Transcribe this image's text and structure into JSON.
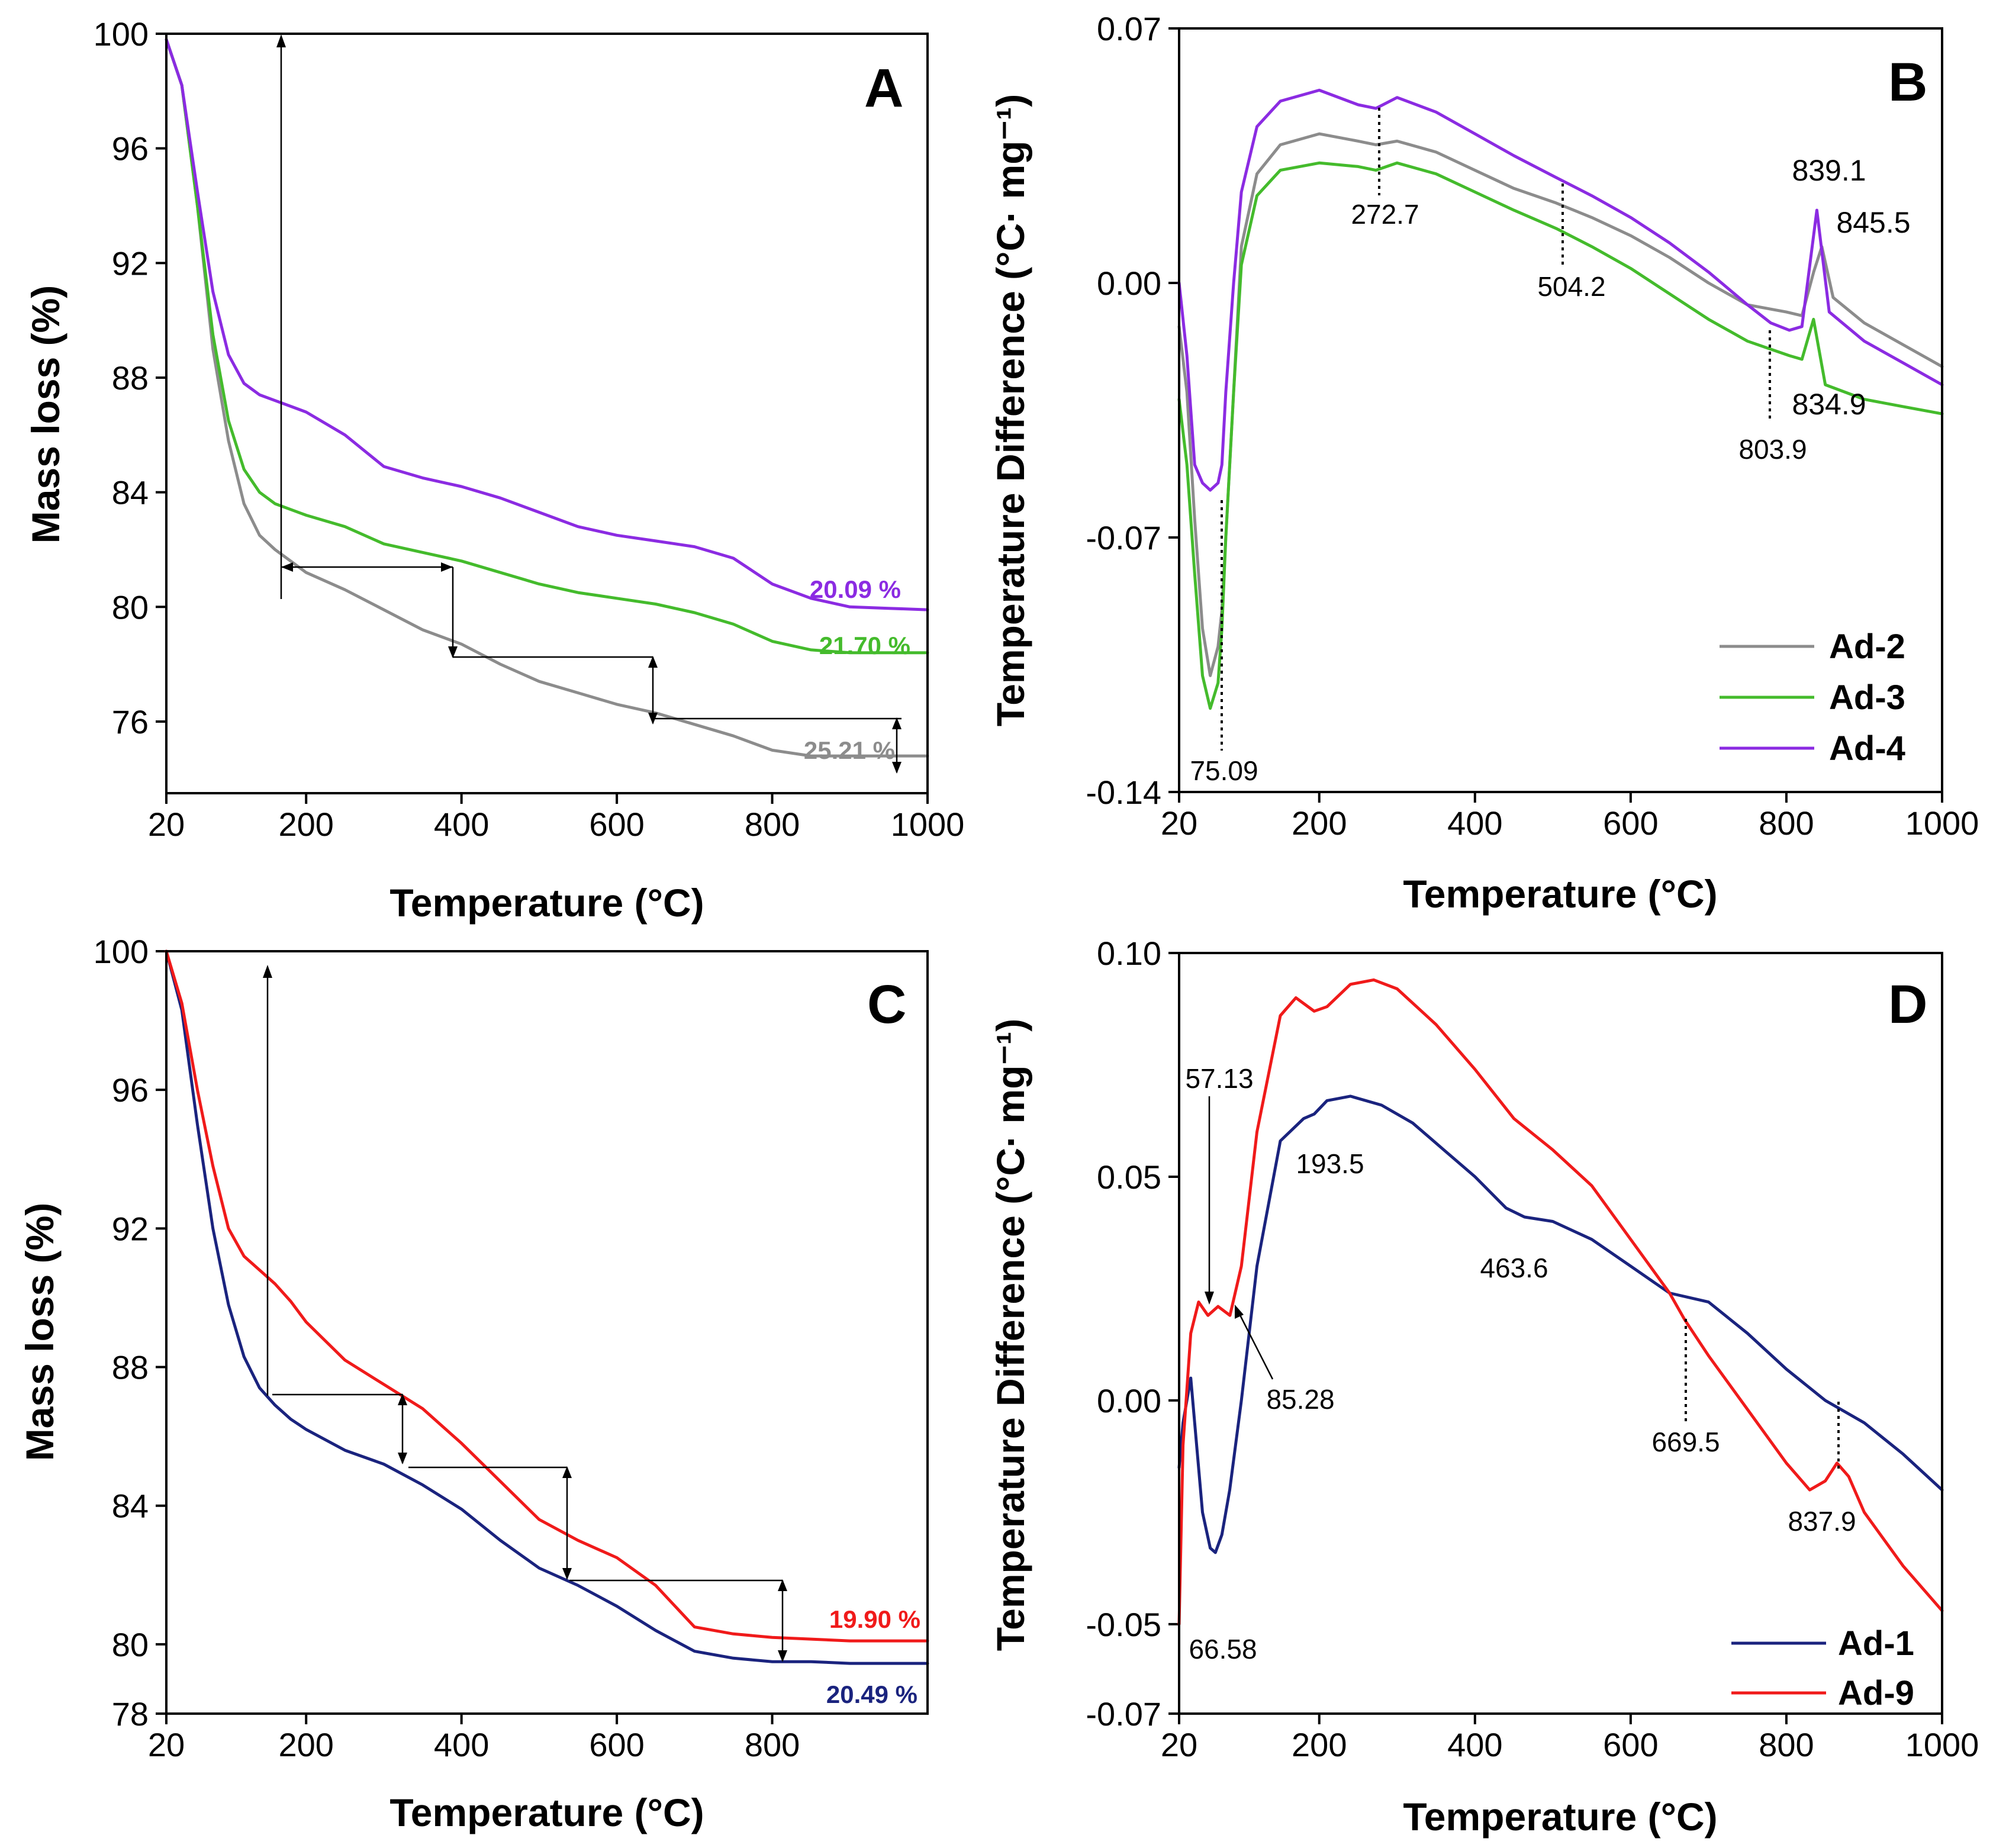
{
  "colors": {
    "Ad-1": "#1a237e",
    "Ad-2": "#8c8c8c",
    "Ad-3": "#44bb2c",
    "Ad-4": "#8b2be2",
    "Ad-9": "#f01a1a"
  },
  "chart_data": [
    {
      "panel": "A",
      "type": "line",
      "xlabel": "Temperature (°C)",
      "ylabel": "Mass loss (%)",
      "xlim": [
        20,
        1000
      ],
      "ylim": [
        73.5,
        100
      ],
      "xticks": [
        20,
        200,
        400,
        600,
        800,
        1000
      ],
      "yticks": [
        76,
        80,
        84,
        88,
        92,
        96,
        100
      ],
      "series": [
        {
          "name": "Ad-2",
          "color": "#8c8c8c",
          "x": [
            20,
            40,
            60,
            80,
            100,
            120,
            140,
            160,
            180,
            200,
            250,
            300,
            350,
            400,
            450,
            500,
            550,
            600,
            650,
            700,
            750,
            800,
            850,
            900,
            950,
            1000
          ],
          "y": [
            99.8,
            98.2,
            94.0,
            89.0,
            85.8,
            83.6,
            82.5,
            82.0,
            81.6,
            81.2,
            80.6,
            79.9,
            79.2,
            78.7,
            78.0,
            77.4,
            77.0,
            76.6,
            76.3,
            75.9,
            75.5,
            75.0,
            74.8,
            74.8,
            74.8,
            74.8
          ]
        },
        {
          "name": "Ad-3",
          "color": "#44bb2c",
          "x": [
            20,
            40,
            60,
            80,
            100,
            120,
            140,
            160,
            180,
            200,
            250,
            300,
            350,
            400,
            450,
            500,
            550,
            600,
            650,
            700,
            750,
            800,
            850,
            900,
            950,
            1000
          ],
          "y": [
            99.8,
            98.2,
            94.0,
            89.5,
            86.5,
            84.8,
            84.0,
            83.6,
            83.4,
            83.2,
            82.8,
            82.2,
            81.9,
            81.6,
            81.2,
            80.8,
            80.5,
            80.3,
            80.1,
            79.8,
            79.4,
            78.8,
            78.5,
            78.4,
            78.4,
            78.4
          ]
        },
        {
          "name": "Ad-4",
          "color": "#8b2be2",
          "x": [
            20,
            40,
            60,
            80,
            100,
            120,
            140,
            160,
            180,
            200,
            250,
            300,
            350,
            400,
            450,
            500,
            550,
            600,
            650,
            700,
            750,
            800,
            850,
            900,
            950,
            1000
          ],
          "y": [
            99.8,
            98.2,
            94.5,
            91.0,
            88.8,
            87.8,
            87.4,
            87.2,
            87.0,
            86.8,
            86.0,
            84.9,
            84.5,
            84.2,
            83.8,
            83.3,
            82.8,
            82.5,
            82.3,
            82.1,
            81.7,
            80.8,
            80.3,
            80.0,
            79.95,
            79.9
          ]
        }
      ],
      "annotations": [
        "20.09 %",
        "21.70 %",
        "25.21 %"
      ],
      "annotation_values": [
        20.09,
        21.7,
        25.21
      ]
    },
    {
      "panel": "B",
      "type": "line",
      "xlabel": "Temperature (°C)",
      "ylabel": "Temperature Difference (°C· mg⁻¹)",
      "xlim": [
        20,
        1000
      ],
      "ylim": [
        -0.14,
        0.07
      ],
      "xticks": [
        20,
        200,
        400,
        600,
        800,
        1000
      ],
      "yticks": [
        -0.14,
        -0.07,
        0.0,
        0.07
      ],
      "ytick_labels": [
        "-0.14",
        "-0.07",
        "0.00",
        "0.07"
      ],
      "legend": [
        "Ad-2",
        "Ad-3",
        "Ad-4"
      ],
      "legend_position": "bottom-right",
      "series": [
        {
          "name": "Ad-2",
          "color": "#8c8c8c",
          "x": [
            20,
            30,
            40,
            50,
            60,
            70,
            75,
            80,
            90,
            100,
            120,
            150,
            200,
            250,
            272.7,
            300,
            350,
            400,
            450,
            504.2,
            550,
            600,
            650,
            700,
            750,
            800,
            820,
            835,
            845.5,
            860,
            900,
            950,
            1000
          ],
          "y": [
            -0.012,
            -0.03,
            -0.065,
            -0.095,
            -0.108,
            -0.1,
            -0.09,
            -0.07,
            -0.03,
            0.01,
            0.03,
            0.038,
            0.041,
            0.039,
            0.038,
            0.039,
            0.036,
            0.031,
            0.026,
            0.022,
            0.018,
            0.013,
            0.007,
            0.0,
            -0.006,
            -0.008,
            -0.009,
            0.003,
            0.01,
            -0.004,
            -0.011,
            -0.017,
            -0.023
          ]
        },
        {
          "name": "Ad-3",
          "color": "#44bb2c",
          "x": [
            20,
            30,
            40,
            50,
            60,
            70,
            75,
            80,
            90,
            100,
            120,
            150,
            200,
            250,
            272.7,
            300,
            350,
            400,
            450,
            504.2,
            550,
            600,
            650,
            700,
            750,
            803.9,
            820,
            834.9,
            850,
            900,
            950,
            1000
          ],
          "y": [
            -0.032,
            -0.05,
            -0.08,
            -0.108,
            -0.117,
            -0.11,
            -0.095,
            -0.07,
            -0.03,
            0.005,
            0.024,
            0.031,
            0.033,
            0.032,
            0.031,
            0.033,
            0.03,
            0.025,
            0.02,
            0.015,
            0.01,
            0.004,
            -0.003,
            -0.01,
            -0.016,
            -0.02,
            -0.021,
            -0.01,
            -0.028,
            -0.032,
            -0.034,
            -0.036
          ]
        },
        {
          "name": "Ad-4",
          "color": "#8b2be2",
          "x": [
            20,
            30,
            40,
            50,
            60,
            70,
            75,
            80,
            90,
            100,
            120,
            150,
            200,
            250,
            272.7,
            300,
            350,
            400,
            450,
            504.2,
            550,
            600,
            650,
            700,
            750,
            780,
            803.9,
            820,
            839.1,
            855,
            900,
            950,
            1000
          ],
          "y": [
            0.0,
            -0.02,
            -0.05,
            -0.055,
            -0.057,
            -0.055,
            -0.05,
            -0.03,
            0.0,
            0.025,
            0.043,
            0.05,
            0.053,
            0.049,
            0.048,
            0.051,
            0.047,
            0.041,
            0.035,
            0.029,
            0.024,
            0.018,
            0.011,
            0.003,
            -0.006,
            -0.011,
            -0.013,
            -0.012,
            0.02,
            -0.008,
            -0.016,
            -0.022,
            -0.028
          ]
        }
      ],
      "annotations": [
        "272.7",
        "504.2",
        "839.1",
        "845.5",
        "834.9",
        "803.9",
        "75.09"
      ]
    },
    {
      "panel": "C",
      "type": "line",
      "xlabel": "Temperature (°C)",
      "ylabel": "Mass loss (%)",
      "xlim": [
        20,
        1000
      ],
      "ylim": [
        78,
        100
      ],
      "xticks": [
        20,
        200,
        400,
        600,
        800
      ],
      "yticks": [
        78,
        80,
        84,
        88,
        92,
        96,
        100
      ],
      "series": [
        {
          "name": "Ad-1",
          "color": "#1a237e",
          "x": [
            20,
            40,
            60,
            80,
            100,
            120,
            140,
            160,
            180,
            200,
            250,
            300,
            350,
            400,
            450,
            500,
            550,
            600,
            650,
            700,
            750,
            800,
            850,
            900,
            950,
            1000
          ],
          "y": [
            100.0,
            98.3,
            95.0,
            92.0,
            89.8,
            88.3,
            87.4,
            86.9,
            86.5,
            86.2,
            85.6,
            85.2,
            84.6,
            83.9,
            83.0,
            82.2,
            81.7,
            81.1,
            80.4,
            79.8,
            79.6,
            79.5,
            79.5,
            79.45,
            79.45,
            79.45
          ]
        },
        {
          "name": "Ad-9",
          "color": "#f01a1a",
          "x": [
            20,
            40,
            60,
            80,
            100,
            120,
            140,
            160,
            180,
            200,
            250,
            300,
            350,
            400,
            450,
            500,
            550,
            600,
            650,
            700,
            750,
            800,
            850,
            900,
            950,
            1000
          ],
          "y": [
            100.0,
            98.5,
            96.0,
            93.8,
            92.0,
            91.2,
            90.8,
            90.4,
            89.9,
            89.3,
            88.2,
            87.5,
            86.8,
            85.8,
            84.7,
            83.6,
            83.0,
            82.5,
            81.7,
            80.5,
            80.3,
            80.2,
            80.15,
            80.1,
            80.1,
            80.1
          ]
        }
      ],
      "annotations": [
        "19.90 %",
        "20.49 %"
      ],
      "annotation_values": [
        19.9,
        20.49
      ]
    },
    {
      "panel": "D",
      "type": "line",
      "xlabel": "Temperature (°C)",
      "ylabel": "Temperature Difference (°C· mg⁻¹)",
      "xlim": [
        20,
        1000
      ],
      "ylim": [
        -0.07,
        0.1
      ],
      "xticks": [
        20,
        200,
        400,
        600,
        800,
        1000
      ],
      "yticks": [
        -0.07,
        -0.05,
        0.0,
        0.05,
        0.1
      ],
      "ytick_labels": [
        "-0.07",
        "-0.05",
        "0.00",
        "0.05",
        "0.10"
      ],
      "legend": [
        "Ad-1",
        "Ad-9"
      ],
      "legend_position": "bottom-right",
      "series": [
        {
          "name": "Ad-1",
          "color": "#1a237e",
          "x": [
            20,
            25,
            35,
            40,
            50,
            60,
            66.58,
            75,
            85,
            100,
            120,
            150,
            180,
            193.5,
            210,
            240,
            280,
            320,
            360,
            400,
            440,
            463.6,
            500,
            550,
            600,
            650,
            700,
            750,
            800,
            850,
            900,
            950,
            1000
          ],
          "y": [
            -0.015,
            -0.005,
            0.005,
            -0.005,
            -0.025,
            -0.033,
            -0.034,
            -0.03,
            -0.02,
            0.0,
            0.03,
            0.058,
            0.063,
            0.064,
            0.067,
            0.068,
            0.066,
            0.062,
            0.056,
            0.05,
            0.043,
            0.041,
            0.04,
            0.036,
            0.03,
            0.024,
            0.022,
            0.015,
            0.007,
            0.0,
            -0.005,
            -0.012,
            -0.02
          ]
        },
        {
          "name": "Ad-9",
          "color": "#f01a1a",
          "x": [
            20,
            25,
            35,
            45,
            57.13,
            70,
            85.28,
            100,
            120,
            150,
            170,
            193.5,
            210,
            240,
            270,
            300,
            350,
            400,
            450,
            500,
            550,
            600,
            650,
            669.5,
            700,
            750,
            800,
            830,
            850,
            865,
            880,
            900,
            950,
            1000
          ],
          "y": [
            -0.05,
            -0.01,
            0.015,
            0.022,
            0.019,
            0.021,
            0.019,
            0.03,
            0.06,
            0.086,
            0.09,
            0.087,
            0.088,
            0.093,
            0.094,
            0.092,
            0.084,
            0.074,
            0.063,
            0.056,
            0.048,
            0.036,
            0.024,
            0.018,
            0.01,
            -0.002,
            -0.014,
            -0.02,
            -0.018,
            -0.014,
            -0.017,
            -0.025,
            -0.037,
            -0.047
          ]
        }
      ],
      "annotations": [
        "57.13",
        "193.5",
        "85.28",
        "463.6",
        "669.5",
        "837.9",
        "66.58"
      ]
    }
  ]
}
